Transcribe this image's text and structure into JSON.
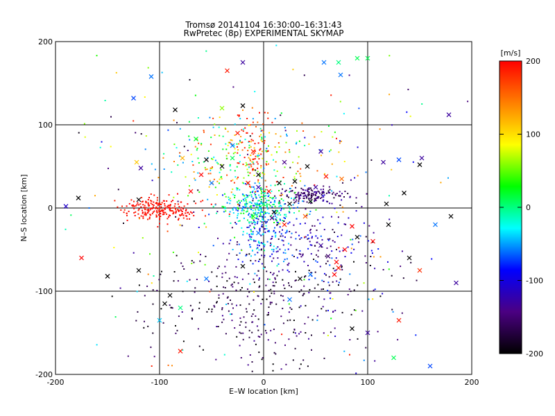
{
  "chart_data": {
    "type": "scatter",
    "title": "Tromsø 20141104 16:30:00–16:31:43",
    "subtitle": "RwPretec (8p) EXPERIMENTAL SKYMAP",
    "xlabel": "E–W location [km]",
    "ylabel": "N–S location [km]",
    "xlim": [
      -200,
      200
    ],
    "ylim": [
      -200,
      200
    ],
    "x_ticks": [
      "-200",
      "-100",
      "0",
      "100",
      "200"
    ],
    "y_ticks": [
      "-200",
      "-100",
      "0",
      "100",
      "200"
    ],
    "grid_lines": [
      -100,
      0,
      100
    ],
    "colorbar": {
      "label": "[m/s]",
      "range": [
        -200,
        200
      ],
      "ticks": [
        "200",
        "100",
        "0",
        "-100",
        "-200"
      ],
      "colors": [
        "#000000",
        "#4b0082",
        "#0000ff",
        "#00ffff",
        "#00ff00",
        "#ffff00",
        "#ff7f00",
        "#ff0000"
      ]
    },
    "series": [
      {
        "marker": "x",
        "points": [
          [
            -190,
            2,
            -110
          ],
          [
            -178,
            12,
            -200
          ],
          [
            -175,
            -60,
            200
          ],
          [
            -150,
            -82,
            -200
          ],
          [
            -122,
            55,
            110
          ],
          [
            -118,
            48,
            -130
          ],
          [
            -108,
            158,
            -60
          ],
          [
            -125,
            132,
            -70
          ],
          [
            -100,
            -135,
            -40
          ],
          [
            -90,
            -105,
            -200
          ],
          [
            -80,
            -172,
            190
          ],
          [
            -85,
            118,
            -200
          ],
          [
            -78,
            60,
            120
          ],
          [
            -65,
            83,
            20
          ],
          [
            -55,
            58,
            -200
          ],
          [
            -40,
            120,
            60
          ],
          [
            -35,
            165,
            190
          ],
          [
            -20,
            175,
            -130
          ],
          [
            -20,
            123,
            -200
          ],
          [
            -25,
            90,
            190
          ],
          [
            -30,
            75,
            -60
          ],
          [
            -10,
            68,
            180
          ],
          [
            -5,
            40,
            -200
          ],
          [
            -15,
            30,
            200
          ],
          [
            -5,
            25,
            -120
          ],
          [
            5,
            20,
            200
          ],
          [
            15,
            30,
            -200
          ],
          [
            20,
            55,
            -140
          ],
          [
            30,
            32,
            -200
          ],
          [
            42,
            50,
            -200
          ],
          [
            55,
            68,
            -130
          ],
          [
            58,
            175,
            -60
          ],
          [
            72,
            175,
            0
          ],
          [
            74,
            160,
            -60
          ],
          [
            90,
            180,
            10
          ],
          [
            100,
            180,
            10
          ],
          [
            75,
            35,
            150
          ],
          [
            60,
            38,
            190
          ],
          [
            50,
            25,
            -130
          ],
          [
            45,
            8,
            -200
          ],
          [
            8,
            -12,
            -150
          ],
          [
            20,
            -20,
            190
          ],
          [
            40,
            -10,
            160
          ],
          [
            55,
            -45,
            -130
          ],
          [
            62,
            -58,
            -150
          ],
          [
            70,
            -65,
            200
          ],
          [
            72,
            -72,
            190
          ],
          [
            68,
            -80,
            200
          ],
          [
            78,
            -50,
            200
          ],
          [
            85,
            -22,
            200
          ],
          [
            90,
            -35,
            -200
          ],
          [
            105,
            -40,
            200
          ],
          [
            115,
            55,
            -130
          ],
          [
            118,
            5,
            -200
          ],
          [
            120,
            -20,
            -200
          ],
          [
            130,
            58,
            -70
          ],
          [
            150,
            52,
            -200
          ],
          [
            152,
            60,
            -130
          ],
          [
            135,
            18,
            -200
          ],
          [
            140,
            -60,
            -200
          ],
          [
            150,
            -75,
            180
          ],
          [
            165,
            -20,
            -60
          ],
          [
            180,
            -10,
            -200
          ],
          [
            178,
            112,
            -130
          ],
          [
            185,
            -90,
            -130
          ],
          [
            160,
            -190,
            -70
          ],
          [
            130,
            -135,
            190
          ],
          [
            100,
            -150,
            -130
          ],
          [
            85,
            -145,
            -200
          ],
          [
            125,
            -180,
            10
          ],
          [
            45,
            -80,
            -60
          ],
          [
            35,
            -85,
            -200
          ],
          [
            25,
            -110,
            -60
          ],
          [
            -20,
            -70,
            -200
          ],
          [
            -55,
            -85,
            -60
          ],
          [
            -120,
            -75,
            -200
          ],
          [
            -95,
            -115,
            -200
          ],
          [
            -80,
            -120,
            0
          ],
          [
            -120,
            10,
            -200
          ],
          [
            -60,
            40,
            200
          ],
          [
            -40,
            50,
            -200
          ],
          [
            -50,
            30,
            -60
          ],
          [
            -70,
            20,
            200
          ],
          [
            -30,
            60,
            10
          ],
          [
            10,
            -5,
            -200
          ],
          [
            0,
            5,
            0
          ],
          [
            -10,
            -10,
            30
          ],
          [
            25,
            5,
            -200
          ],
          [
            -5,
            -30,
            -60
          ]
        ]
      },
      {
        "marker": "dot",
        "clusters": [
          {
            "region": "west",
            "cx": -100,
            "cy": -2,
            "sx": 18,
            "sy": 7,
            "n": 230,
            "v": 195,
            "dv": 12
          },
          {
            "region": "east",
            "cx": 45,
            "cy": 15,
            "sx": 16,
            "sy": 5,
            "n": 150,
            "v": -150,
            "dv": 35
          },
          {
            "region": "center",
            "cx": -5,
            "cy": 2,
            "sx": 18,
            "sy": 12,
            "n": 280,
            "v": -20,
            "dv": 60
          },
          {
            "region": "center-south",
            "cx": 0,
            "cy": -35,
            "sx": 12,
            "sy": 18,
            "n": 120,
            "v": -70,
            "dv": 60
          },
          {
            "region": "north",
            "cx": -20,
            "cy": 55,
            "sx": 35,
            "sy": 25,
            "n": 260,
            "v": 60,
            "dv": 120
          },
          {
            "region": "north-red",
            "cx": -10,
            "cy": 65,
            "sx": 10,
            "sy": 25,
            "n": 60,
            "v": 190,
            "dv": 10
          },
          {
            "region": "south",
            "cx": 0,
            "cy": -110,
            "sx": 60,
            "sy": 40,
            "n": 360,
            "v": -170,
            "dv": 40
          },
          {
            "region": "south-east",
            "cx": 45,
            "cy": -40,
            "sx": 30,
            "sy": 25,
            "n": 160,
            "v": -120,
            "dv": 60
          },
          {
            "region": "background",
            "cx": 0,
            "cy": 0,
            "sx": 110,
            "sy": 110,
            "n": 260,
            "v": 0,
            "dv": 200
          }
        ]
      }
    ]
  }
}
